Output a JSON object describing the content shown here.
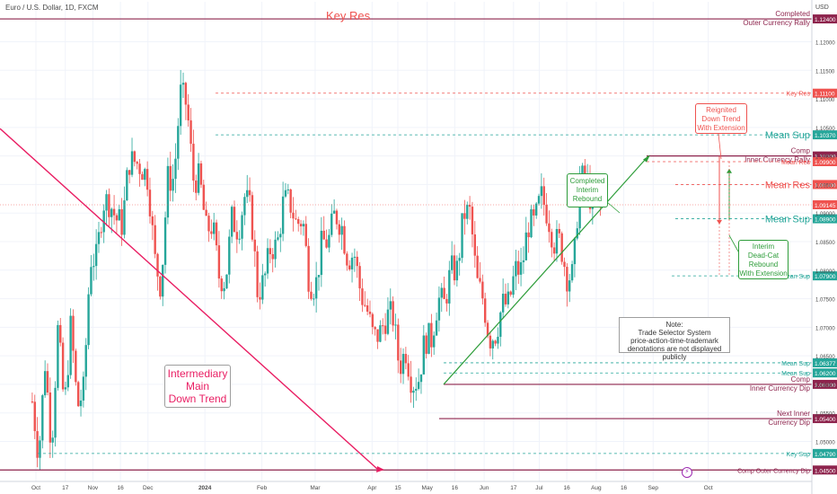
{
  "symbol": "Euro / U.S. Dollar, 1D, FXCM",
  "currency": "USD",
  "colors": {
    "up": "#26a69a",
    "down": "#ef5350",
    "res": "#ef5350",
    "sup": "#26a69a",
    "dip": "#8e244d",
    "trend_down": "#e91e63",
    "trend_up": "#2e9d3a",
    "grid": "#f0f3fa",
    "axis_text": "#4a4a4a"
  },
  "chart_data": {
    "type": "candlestick",
    "title": "Euro / U.S. Dollar, 1D, FXCM",
    "y_axis": {
      "unit": "USD",
      "ticks": [
        "1.04500",
        "1.05000",
        "1.05500",
        "1.06000",
        "1.06500",
        "1.07000",
        "1.07500",
        "1.08000",
        "1.08500",
        "1.09000",
        "1.09500",
        "1.10000",
        "1.10500",
        "1.11000",
        "1.11500",
        "1.12000",
        "1.12400"
      ],
      "range": [
        1.043,
        1.127
      ]
    },
    "x_axis": {
      "ticks": [
        "Oct",
        "17",
        "Nov",
        "16",
        "Dec",
        "2024",
        "Feb",
        "Mar",
        "Apr",
        "15",
        "May",
        "16",
        "Jun",
        "17",
        "Jul",
        "16",
        "Aug",
        "16",
        "Sep",
        "Oct"
      ],
      "tick_days": [
        0,
        16,
        31,
        46,
        61,
        92,
        123,
        152,
        183,
        197,
        213,
        228,
        244,
        260,
        274,
        289,
        305,
        320,
        336,
        366
      ]
    },
    "current_price": 1.09145,
    "series": [
      {
        "name": "EUR/USD",
        "points": [
          [
            1.057,
            1.0475
          ],
          [
            1.064,
            1.049
          ],
          [
            1.07,
            1.0555
          ],
          [
            1.0705,
            1.056
          ],
          [
            1.059,
            1.082
          ],
          [
            1.082,
            1.092
          ],
          [
            1.092,
            1.089
          ],
          [
            1.088,
            1.099
          ],
          [
            1.099,
            1.098
          ],
          [
            1.096,
            1.082
          ],
          [
            1.077,
            1.096
          ],
          [
            1.096,
            1.111
          ],
          [
            1.109,
            1.096
          ],
          [
            1.096,
            1.087
          ],
          [
            1.088,
            1.079
          ],
          [
            1.078,
            1.089
          ],
          [
            1.087,
            1.093
          ],
          [
            1.09,
            1.076
          ],
          [
            1.078,
            1.084
          ],
          [
            1.084,
            1.092
          ],
          [
            1.092,
            1.088
          ],
          [
            1.089,
            1.078
          ],
          [
            1.077,
            1.085
          ],
          [
            1.085,
            1.09
          ],
          [
            1.088,
            1.082
          ],
          [
            1.083,
            1.076
          ],
          [
            1.073,
            1.068
          ],
          [
            1.069,
            1.072
          ],
          [
            1.072,
            1.063
          ],
          [
            1.066,
            1.0601
          ],
          [
            1.061,
            1.068
          ],
          [
            1.068,
            1.075
          ],
          [
            1.074,
            1.08
          ],
          [
            1.08,
            1.09
          ],
          [
            1.09,
            1.078
          ],
          [
            1.075,
            1.068
          ],
          [
            1.069,
            1.074
          ],
          [
            1.074,
            1.08
          ],
          [
            1.08,
            1.088
          ],
          [
            1.088,
            1.093
          ],
          [
            1.09,
            1.085
          ],
          [
            1.085,
            1.079
          ],
          [
            1.079,
            1.096
          ],
          [
            1.096,
            1.091
          ],
          [
            1.0915,
            1.09145
          ]
        ]
      }
    ],
    "horizontal_levels": [
      {
        "label": "Completed",
        "sub": "Outer Currency Rally",
        "value": "1.12400",
        "kind": "dip",
        "style": "solid"
      },
      {
        "label": "Key Res",
        "value": "1.11100",
        "kind": "res",
        "style": "dashed"
      },
      {
        "label": "Mean Sup",
        "value": "1.10370",
        "kind": "sup",
        "style": "dashed"
      },
      {
        "label": "Comp",
        "sub": "Inner Currency Rally",
        "value": "1.10000",
        "kind": "dip",
        "style": "solid"
      },
      {
        "label": "Mean Res",
        "value": "1.09900",
        "kind": "res",
        "style": "dashed"
      },
      {
        "label": "Mean Res",
        "value": "1.09500",
        "kind": "res",
        "style": "dashed"
      },
      {
        "label": "Mean Sup",
        "value": "1.08900",
        "kind": "sup",
        "style": "dashed"
      },
      {
        "label": "Mean Sup",
        "value": "1.07900",
        "kind": "sup",
        "style": "dashed"
      },
      {
        "label": "Mean Sup",
        "value": "1.06377",
        "kind": "sup",
        "style": "dashed"
      },
      {
        "label": "Mean Sup",
        "value": "1.06200",
        "kind": "sup",
        "style": "dashed"
      },
      {
        "label": "Comp",
        "sub": "Inner Currency Dip",
        "value": "1.06000",
        "kind": "dip",
        "style": "solid"
      },
      {
        "label": "Next Inner",
        "sub": "Currency Dip",
        "value": "1.05400",
        "kind": "dip",
        "style": "solid"
      },
      {
        "label": "Key Sup",
        "value": "1.04790",
        "kind": "sup",
        "style": "dashed"
      },
      {
        "label": "Comp Outer Currency Dip",
        "value": "1.04500",
        "kind": "dip",
        "style": "solid"
      }
    ],
    "current_price_label": "1.09145"
  },
  "annotations": {
    "key_res_title": "Key Res",
    "intermediary": [
      "Intermediary",
      "Main",
      "Down Trend"
    ],
    "completed_interim": [
      "Completed",
      "Interim",
      "Rebound"
    ],
    "reignited": [
      "Reignited",
      "Down Trend",
      "With Extension"
    ],
    "interim_deadcat": [
      "Interim",
      "Dead-Cat",
      "Rebound",
      "With Extension"
    ],
    "note": [
      "Note:",
      "Trade Selector System",
      "price-action-time-trademark",
      "denotations are not displayed publicly"
    ],
    "bolt_icon": "lightning-bolt-icon"
  }
}
